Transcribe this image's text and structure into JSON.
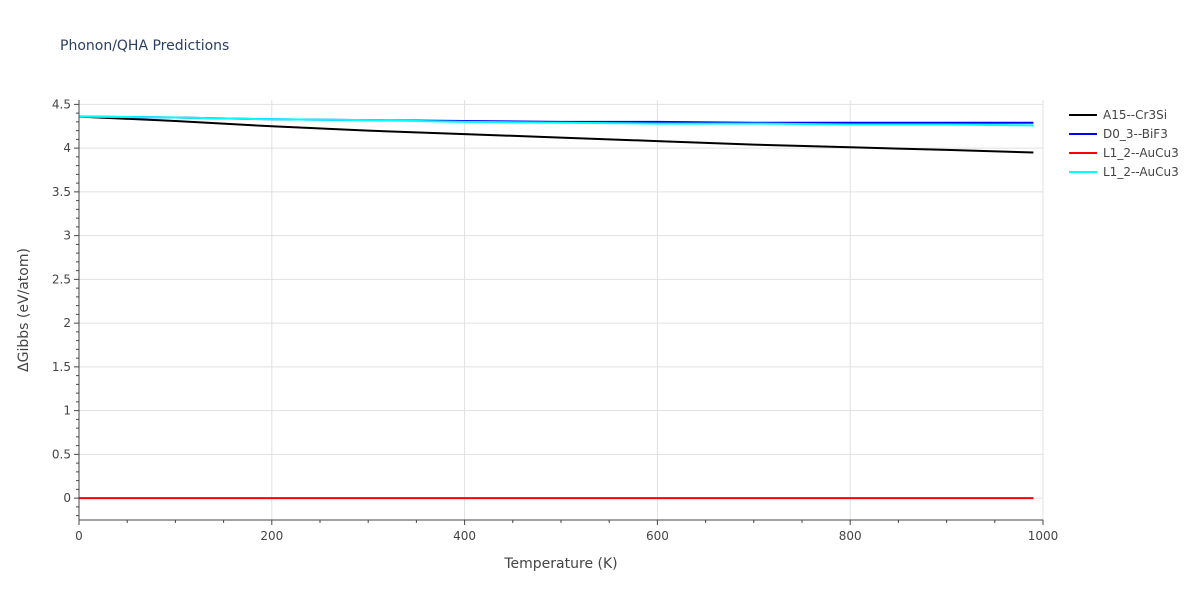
{
  "chart_data": {
    "type": "line",
    "title": "Phonon/QHA Predictions",
    "xlabel": "Temperature (K)",
    "ylabel": "ΔGibbs (eV/atom)",
    "xlim": [
      0,
      1000
    ],
    "ylim": [
      -0.25,
      4.55
    ],
    "x_ticks": [
      0,
      200,
      400,
      600,
      800,
      1000
    ],
    "x_tick_labels": [
      "0",
      "200",
      "400",
      "600",
      "800",
      "1000"
    ],
    "y_ticks": [
      0,
      0.5,
      1,
      1.5,
      2,
      2.5,
      3,
      3.5,
      4,
      4.5
    ],
    "y_tick_labels": [
      "0",
      "0.5",
      "1",
      "1.5",
      "2",
      "2.5",
      "3",
      "3.5",
      "4",
      "4.5"
    ],
    "grid": true,
    "legend_position": "top-right",
    "x": [
      0,
      100,
      200,
      300,
      400,
      500,
      600,
      700,
      800,
      900,
      990
    ],
    "series": [
      {
        "name": "A15--Cr3Si",
        "color": "#000000",
        "values": [
          4.36,
          4.31,
          4.25,
          4.2,
          4.16,
          4.12,
          4.08,
          4.04,
          4.01,
          3.98,
          3.95
        ]
      },
      {
        "name": "D0_3--BiF3",
        "color": "#0000ff",
        "values": [
          4.36,
          4.35,
          4.33,
          4.32,
          4.31,
          4.3,
          4.3,
          4.29,
          4.29,
          4.29,
          4.29
        ]
      },
      {
        "name": "L1_2--AuCu3",
        "color": "#ff0000",
        "values": [
          0,
          0,
          0,
          0,
          0,
          0,
          0,
          0,
          0,
          0,
          0
        ]
      },
      {
        "name": "L1_2--AuCu3",
        "color": "#00ffff",
        "values": [
          4.36,
          4.35,
          4.33,
          4.32,
          4.3,
          4.29,
          4.28,
          4.28,
          4.27,
          4.27,
          4.26
        ]
      }
    ]
  }
}
